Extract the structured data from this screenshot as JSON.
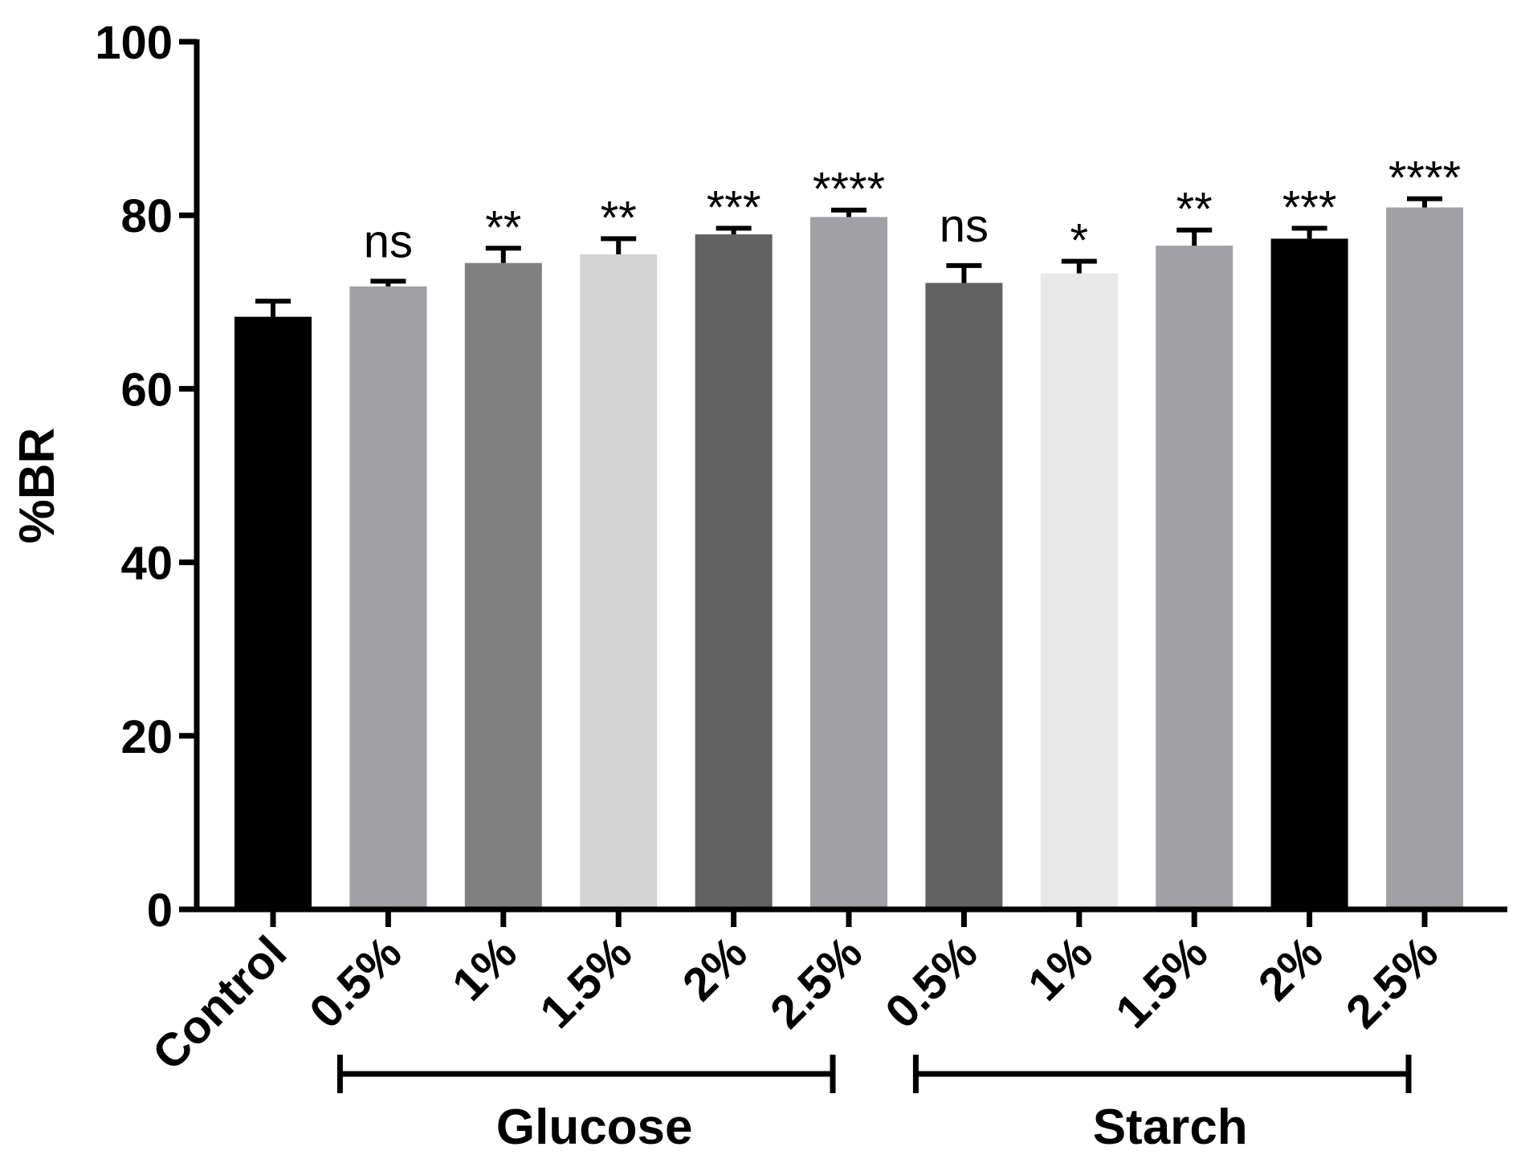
{
  "chart_data": {
    "type": "bar",
    "ylabel": "%BR",
    "ylim": [
      0,
      100
    ],
    "yticks": [
      "0",
      "20",
      "40",
      "60",
      "80",
      "100"
    ],
    "categories": [
      "Control",
      "0.5%",
      "1%",
      "1.5%",
      "2%",
      "2.5%",
      "0.5%",
      "1%",
      "1.5%",
      "2%",
      "2.5%"
    ],
    "values": [
      68.3,
      71.8,
      74.5,
      75.5,
      77.8,
      79.8,
      72.2,
      73.3,
      76.5,
      77.3,
      80.9
    ],
    "errors": [
      1.8,
      0.6,
      1.7,
      1.8,
      0.7,
      0.8,
      2.0,
      1.4,
      1.8,
      1.2,
      1.0
    ],
    "significance": [
      "",
      "ns",
      "**",
      "**",
      "***",
      "****",
      "ns",
      "*",
      "**",
      "***",
      "****"
    ],
    "colors": [
      "#000000",
      "#a0a0a5",
      "#808080",
      "#d4d4d4",
      "#626262",
      "#a0a0a5",
      "#626262",
      "#e8e8e8",
      "#a0a0a5",
      "#000000",
      "#a0a0a5"
    ],
    "groups": [
      {
        "label": "Glucose",
        "from": 1,
        "to": 5
      },
      {
        "label": "Starch",
        "from": 6,
        "to": 10
      }
    ]
  }
}
